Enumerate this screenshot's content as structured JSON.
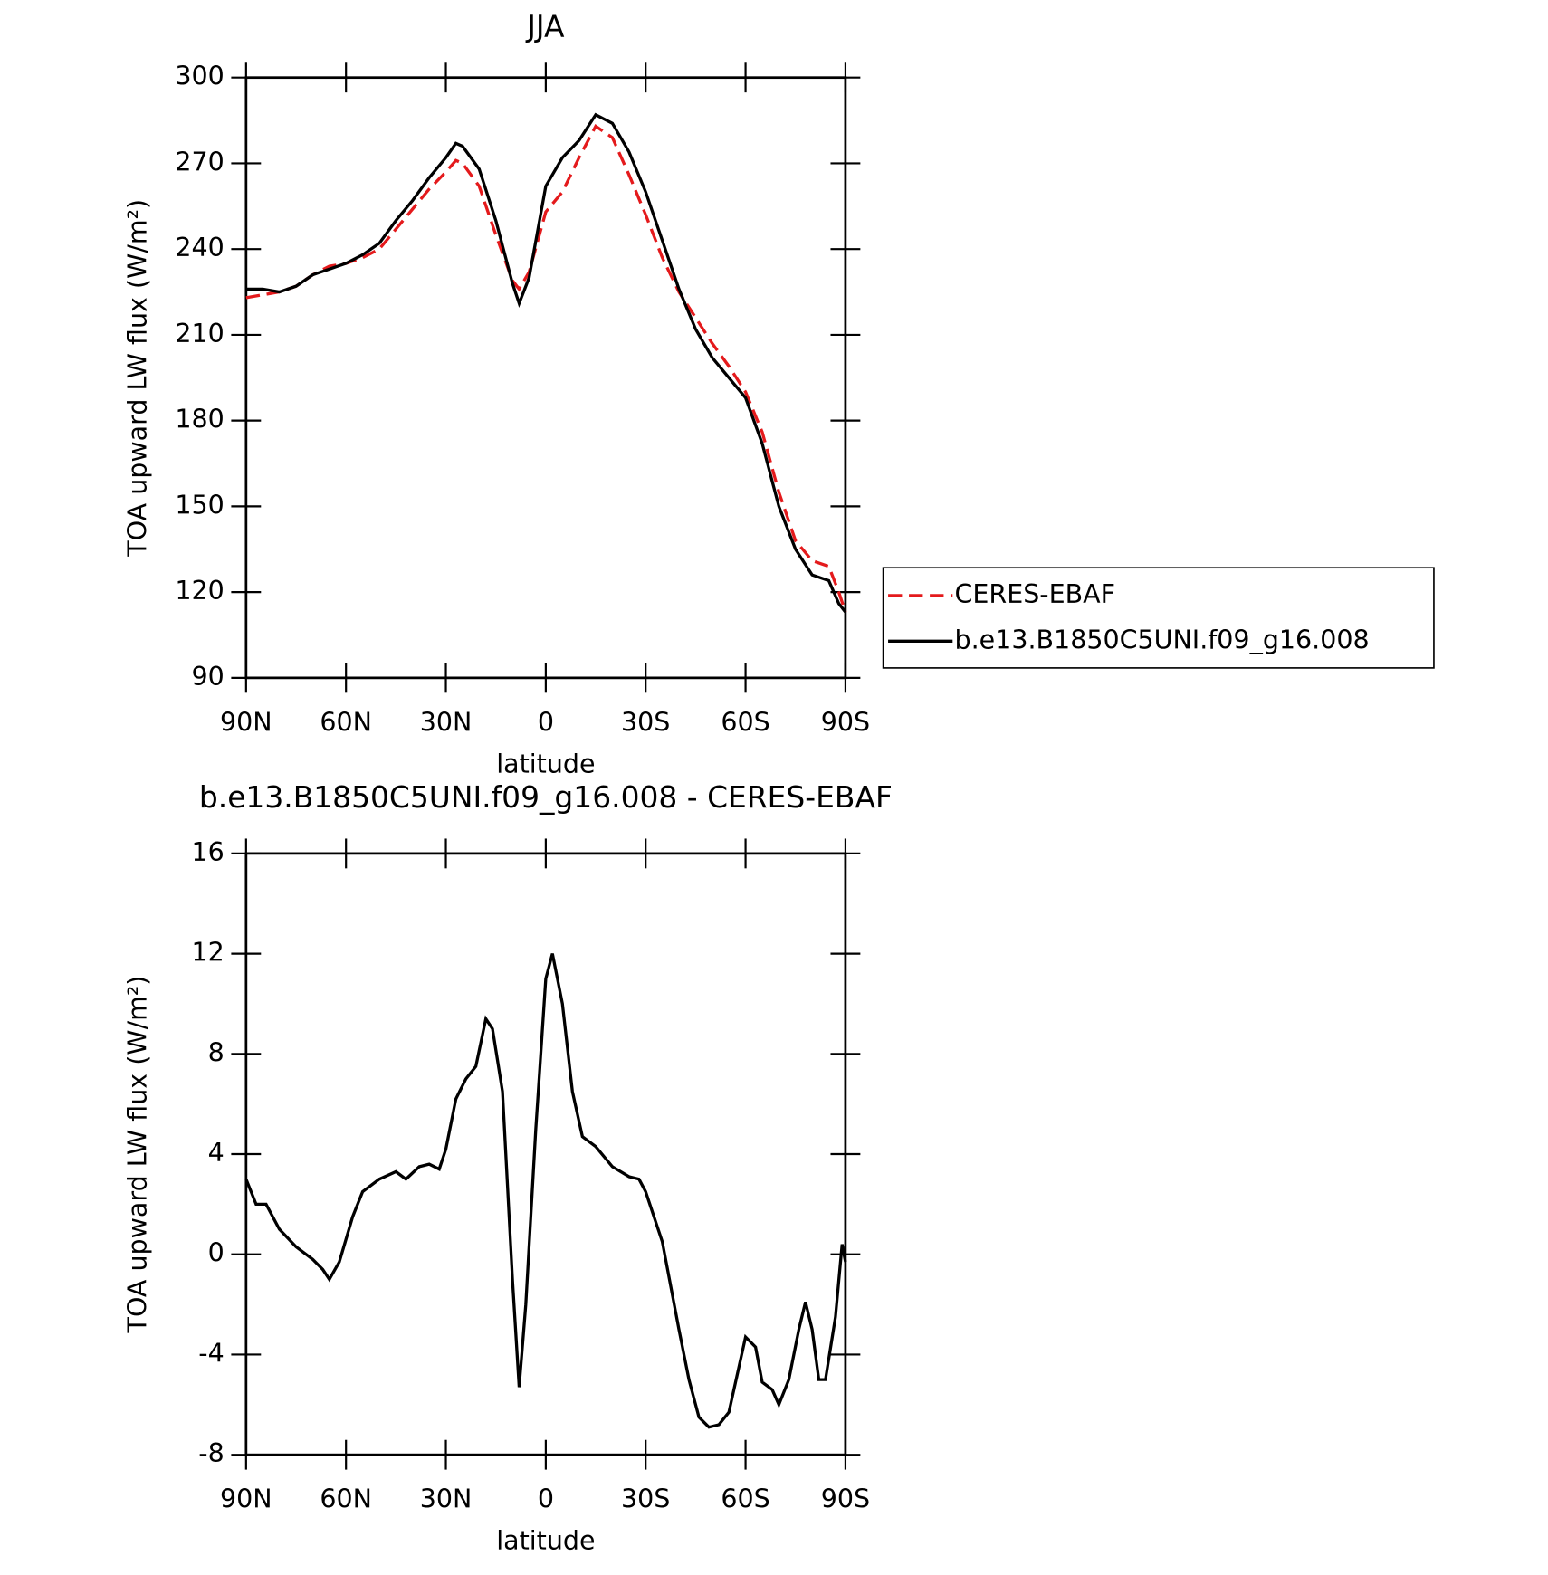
{
  "chart_data": [
    {
      "type": "line",
      "title": "JJA",
      "xlabel": "latitude",
      "ylabel": "TOA upward LW flux (W/m²)",
      "x": [
        90,
        85,
        80,
        75,
        70,
        65,
        60,
        55,
        50,
        45,
        40,
        35,
        30,
        27,
        25,
        20,
        15,
        10,
        8,
        5,
        0,
        -5,
        -10,
        -15,
        -20,
        -25,
        -30,
        -35,
        -40,
        -45,
        -50,
        -55,
        -60,
        -65,
        -70,
        -75,
        -80,
        -85,
        -88,
        -90
      ],
      "series": [
        {
          "name": "CERES-EBAF",
          "color": "#e41a1c",
          "dash": true,
          "values": [
            223,
            224,
            225,
            227,
            231,
            234,
            235,
            237,
            240,
            247,
            254,
            261,
            267,
            271,
            270,
            262,
            245,
            229,
            226,
            232,
            253,
            260,
            272,
            283,
            279,
            266,
            252,
            237,
            225,
            216,
            207,
            199,
            190,
            176,
            155,
            138,
            131,
            129,
            120,
            113
          ]
        },
        {
          "name": "b.e13.B1850C5UNI.f09_g16.008",
          "color": "#000000",
          "dash": false,
          "values": [
            226,
            226,
            225,
            227,
            231,
            233,
            235,
            238,
            242,
            250,
            257,
            265,
            272,
            277,
            276,
            268,
            250,
            228,
            221,
            230,
            262,
            272,
            278,
            287,
            284,
            274,
            260,
            243,
            226,
            212,
            202,
            195,
            188,
            172,
            150,
            135,
            126,
            124,
            116,
            113
          ]
        }
      ],
      "xlim": [
        90,
        -90
      ],
      "xticks": [
        {
          "value": 90,
          "label": "90N"
        },
        {
          "value": 60,
          "label": "60N"
        },
        {
          "value": 30,
          "label": "30N"
        },
        0,
        {
          "value": -30,
          "label": "30S"
        },
        {
          "value": -60,
          "label": "60S"
        },
        {
          "value": -90,
          "label": "90S"
        }
      ],
      "ylim": [
        90,
        300
      ],
      "yticks": [
        90,
        120,
        150,
        180,
        210,
        240,
        270,
        300
      ],
      "legend": "right",
      "grid": false
    },
    {
      "type": "line",
      "title": "b.e13.B1850C5UNI.f09_g16.008 - CERES-EBAF",
      "xlabel": "latitude",
      "ylabel": "TOA upward LW flux (W/m²)",
      "x": [
        90,
        87,
        84,
        80,
        75,
        70,
        67,
        65,
        62,
        58,
        55,
        50,
        45,
        42,
        38,
        35,
        32,
        30,
        27,
        24,
        21,
        18,
        16,
        13,
        10,
        8,
        6,
        3,
        0,
        -2,
        -5,
        -8,
        -11,
        -15,
        -20,
        -25,
        -28,
        -30,
        -35,
        -40,
        -43,
        -46,
        -49,
        -52,
        -55,
        -60,
        -63,
        -65,
        -68,
        -70,
        -73,
        -76,
        -78,
        -80,
        -82,
        -84,
        -87,
        -89,
        -90
      ],
      "series": [
        {
          "name": "b.e13.B1850C5UNI.f09_g16.008 - CERES-EBAF",
          "color": "#000000",
          "dash": false,
          "values": [
            3,
            2,
            2,
            1,
            0.3,
            -0.2,
            -0.6,
            -1,
            -0.3,
            1.5,
            2.5,
            3,
            3.3,
            3,
            3.5,
            3.6,
            3.4,
            4.2,
            6.2,
            7,
            7.5,
            9.4,
            9,
            6.5,
            -1,
            -5.3,
            -2,
            5,
            11,
            12,
            10,
            6.5,
            4.7,
            4.3,
            3.5,
            3.1,
            3,
            2.5,
            0.5,
            -3,
            -5,
            -6.5,
            -6.9,
            -6.8,
            -6.3,
            -3.3,
            -3.7,
            -5.1,
            -5.4,
            -6,
            -5,
            -3,
            -1.9,
            -3,
            -5,
            -5,
            -2.5,
            0.4,
            -0.3
          ]
        }
      ],
      "xlim": [
        90,
        -90
      ],
      "xticks": [
        {
          "value": 90,
          "label": "90N"
        },
        {
          "value": 60,
          "label": "60N"
        },
        {
          "value": 30,
          "label": "30N"
        },
        0,
        {
          "value": -30,
          "label": "30S"
        },
        {
          "value": -60,
          "label": "60S"
        },
        {
          "value": -90,
          "label": "90S"
        }
      ],
      "ylim": [
        -8,
        16
      ],
      "yticks": [
        -8,
        -4,
        0,
        4,
        8,
        12,
        16
      ],
      "grid": false
    }
  ]
}
